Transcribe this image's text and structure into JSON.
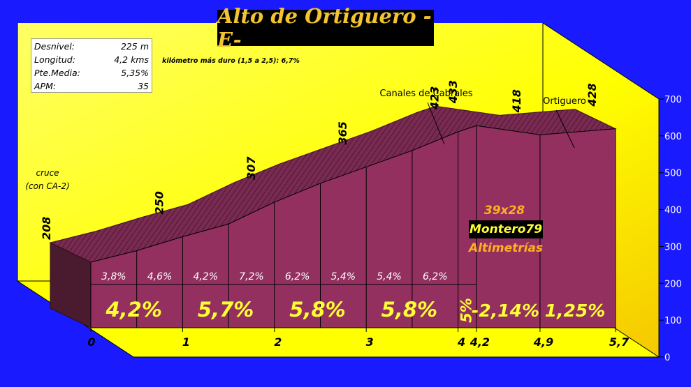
{
  "title": "Alto de Ortiguero -E-",
  "info": [
    {
      "label": "Desnivel:",
      "value": "225 m"
    },
    {
      "label": "Longitud:",
      "value": "4,2 kms"
    },
    {
      "label": "Pte.Media:",
      "value": "5,35%"
    },
    {
      "label": "APM:",
      "value": "35"
    }
  ],
  "hardest_km": "kilómetro más duro (1,5 a 2,5): 6,7%",
  "gear": "39x28",
  "brand": "Montero79",
  "brand_sub": "Altimetrías",
  "colors": {
    "background": "#1a1aff",
    "wall": "#ffff00",
    "profile_front": "#943060",
    "profile_top": "#7a2a52",
    "profile_side": "#4a1a2e",
    "gear_text": "#ffb020",
    "brand_text": "#ffff33"
  },
  "chart_data": {
    "type": "area",
    "x_unit": "km",
    "y_ticks": [
      0,
      100,
      200,
      300,
      400,
      500,
      600,
      700
    ],
    "ylim": [
      0,
      700
    ],
    "x_ticks": [
      "0",
      "1",
      "2",
      "3",
      "4",
      "4,2",
      "4,9",
      "5,7"
    ],
    "profile": [
      {
        "km": 0,
        "alt": 208
      },
      {
        "km": 0.5,
        "alt": 227
      },
      {
        "km": 1,
        "alt": 250
      },
      {
        "km": 1.5,
        "alt": 271
      },
      {
        "km": 2,
        "alt": 307
      },
      {
        "km": 2.5,
        "alt": 338
      },
      {
        "km": 3,
        "alt": 365
      },
      {
        "km": 3.5,
        "alt": 392
      },
      {
        "km": 4,
        "alt": 423
      },
      {
        "km": 4.2,
        "alt": 433
      },
      {
        "km": 4.9,
        "alt": 418
      },
      {
        "km": 5.7,
        "alt": 428
      }
    ],
    "point_labels": [
      {
        "km": 0,
        "text": "208"
      },
      {
        "km": 1,
        "text": "250"
      },
      {
        "km": 2,
        "text": "307"
      },
      {
        "km": 3,
        "text": "365"
      },
      {
        "km": 4,
        "text": "423"
      },
      {
        "km": 4.2,
        "text": "433"
      },
      {
        "km": 4.9,
        "text": "418"
      },
      {
        "km": 5.7,
        "text": "428"
      }
    ],
    "half_km_gradients": [
      "3,8%",
      "4,6%",
      "4,2%",
      "7,2%",
      "6,2%",
      "5,4%",
      "5,4%",
      "6,2%"
    ],
    "segment_gradients": [
      {
        "from": 0,
        "to": 1,
        "text": "4,2%"
      },
      {
        "from": 1,
        "to": 2,
        "text": "5,7%"
      },
      {
        "from": 2,
        "to": 3,
        "text": "5,8%"
      },
      {
        "from": 3,
        "to": 4,
        "text": "5,8%"
      },
      {
        "from": 4,
        "to": 4.2,
        "text": "5%"
      },
      {
        "from": 4.2,
        "to": 4.9,
        "text": "-2,14%"
      },
      {
        "from": 4.9,
        "to": 5.7,
        "text": "1,25%"
      }
    ],
    "place_labels": [
      {
        "km": 0,
        "lines": [
          "cruce",
          "(con CA-2)"
        ]
      },
      {
        "km": 4.2,
        "lines": [
          "Canales de Cabrales"
        ]
      },
      {
        "km": 5.7,
        "lines": [
          "Ortiguero"
        ]
      }
    ]
  }
}
